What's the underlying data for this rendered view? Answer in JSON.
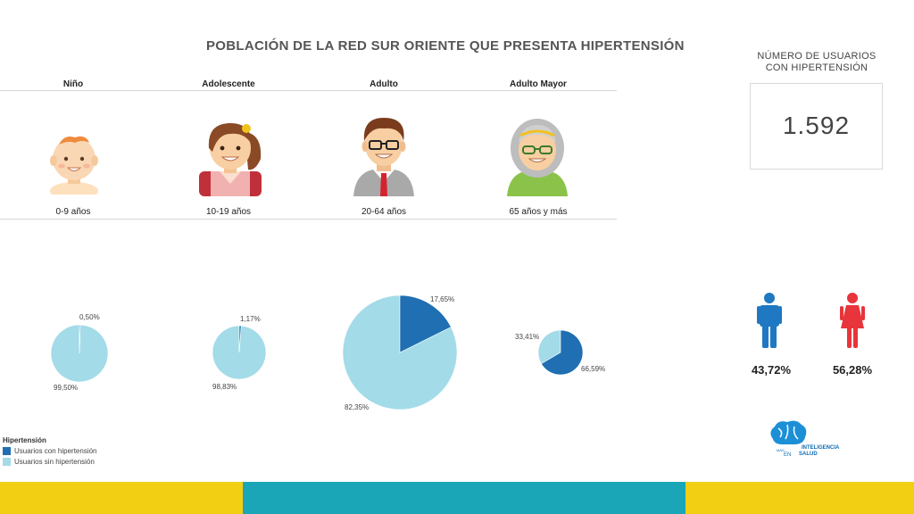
{
  "title": "POBLACIÓN DE LA RED SUR ORIENTE QUE PRESENTA HIPERTENSIÓN",
  "groups": [
    {
      "name": "Niño",
      "age": "0-9 años"
    },
    {
      "name": "Adolescente",
      "age": "10-19 años"
    },
    {
      "name": "Adulto",
      "age": "20-64 años"
    },
    {
      "name": "Adulto Mayor",
      "age": "65 años y más"
    }
  ],
  "kpi": {
    "title_line1": "NÚMERO DE USUARIOS",
    "title_line2": "CON HIPERTENSIÓN",
    "value": "1.592"
  },
  "gender": {
    "male_pct": "43,72%",
    "female_pct": "56,28%"
  },
  "legend": {
    "title": "Hipertensión",
    "items": [
      {
        "label": "Usuarios con hipertensión",
        "color": "#1f6fb2"
      },
      {
        "label": "Usuarios sin hipertensión",
        "color": "#a3dbe8"
      }
    ]
  },
  "logo": {
    "line1": "MÁS",
    "line2": "INTELIGENCIA",
    "line3": "EN",
    "line4": "SALUD"
  },
  "colors": {
    "with": "#1f6fb2",
    "without": "#a3dbe8",
    "male": "#1f78c1",
    "female": "#e8343b",
    "footer_yellow": "#f2cf12",
    "footer_teal": "#1aa6b7"
  },
  "chart_data": {
    "type": "pie",
    "title": "POBLACIÓN DE LA RED SUR ORIENTE QUE PRESENTA HIPERTENSIÓN",
    "series_names": [
      "Usuarios con hipertensión",
      "Usuarios sin hipertensión"
    ],
    "pies": [
      {
        "category": "Niño",
        "with_pct": 0.5,
        "without_pct": 99.5,
        "with_label": "0,50%",
        "without_label": "99,50%"
      },
      {
        "category": "Adolescente",
        "with_pct": 1.17,
        "without_pct": 98.83,
        "with_label": "1,17%",
        "without_label": "98,83%"
      },
      {
        "category": "Adulto",
        "with_pct": 17.65,
        "without_pct": 82.35,
        "with_label": "17,65%",
        "without_label": "82,35%"
      },
      {
        "category": "Adulto Mayor",
        "with_pct": 66.59,
        "without_pct": 33.41,
        "with_label": "66,59%",
        "without_label": "33,41%"
      }
    ]
  }
}
